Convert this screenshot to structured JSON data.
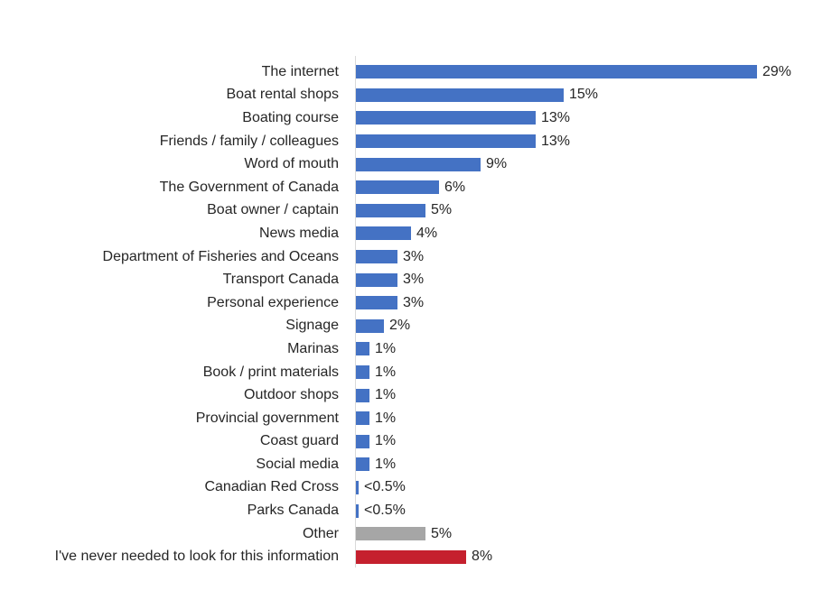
{
  "chart_data": {
    "type": "bar",
    "orientation": "horizontal",
    "title": "",
    "xlabel": "",
    "ylabel": "",
    "xlim": [
      0,
      30
    ],
    "grid": false,
    "legend": false,
    "colors": {
      "primary_blue": "#4472C4",
      "other_gray": "#A6A6A6",
      "never_red": "#C5202E",
      "axis_line": "#D9D9D9",
      "text": "#262626"
    },
    "bars": [
      {
        "label": "The internet",
        "value": 29,
        "display": "29%",
        "color": "#4472C4"
      },
      {
        "label": "Boat rental shops",
        "value": 15,
        "display": "15%",
        "color": "#4472C4"
      },
      {
        "label": "Boating course",
        "value": 13,
        "display": "13%",
        "color": "#4472C4"
      },
      {
        "label": "Friends / family / colleagues",
        "value": 13,
        "display": "13%",
        "color": "#4472C4"
      },
      {
        "label": "Word of mouth",
        "value": 9,
        "display": "9%",
        "color": "#4472C4"
      },
      {
        "label": "The Government of Canada",
        "value": 6,
        "display": "6%",
        "color": "#4472C4"
      },
      {
        "label": "Boat owner / captain",
        "value": 5,
        "display": "5%",
        "color": "#4472C4"
      },
      {
        "label": "News media",
        "value": 4,
        "display": "4%",
        "color": "#4472C4"
      },
      {
        "label": "Department of Fisheries and Oceans",
        "value": 3,
        "display": "3%",
        "color": "#4472C4"
      },
      {
        "label": "Transport Canada",
        "value": 3,
        "display": "3%",
        "color": "#4472C4"
      },
      {
        "label": "Personal experience",
        "value": 3,
        "display": "3%",
        "color": "#4472C4"
      },
      {
        "label": "Signage",
        "value": 2,
        "display": "2%",
        "color": "#4472C4"
      },
      {
        "label": "Marinas",
        "value": 1,
        "display": "1%",
        "color": "#4472C4"
      },
      {
        "label": "Book / print materials",
        "value": 1,
        "display": "1%",
        "color": "#4472C4"
      },
      {
        "label": "Outdoor shops",
        "value": 1,
        "display": "1%",
        "color": "#4472C4"
      },
      {
        "label": "Provincial government",
        "value": 1,
        "display": "1%",
        "color": "#4472C4"
      },
      {
        "label": "Coast guard",
        "value": 1,
        "display": "1%",
        "color": "#4472C4"
      },
      {
        "label": "Social media",
        "value": 1,
        "display": "1%",
        "color": "#4472C4"
      },
      {
        "label": "Canadian Red Cross",
        "value": 0.2,
        "display": "<0.5%",
        "color": "#4472C4"
      },
      {
        "label": "Parks Canada",
        "value": 0.2,
        "display": "<0.5%",
        "color": "#4472C4"
      },
      {
        "label": "Other",
        "value": 5,
        "display": "5%",
        "color": "#A6A6A6"
      },
      {
        "label": "I've never needed to look for this information",
        "value": 8,
        "display": "8%",
        "color": "#C5202E"
      }
    ]
  }
}
